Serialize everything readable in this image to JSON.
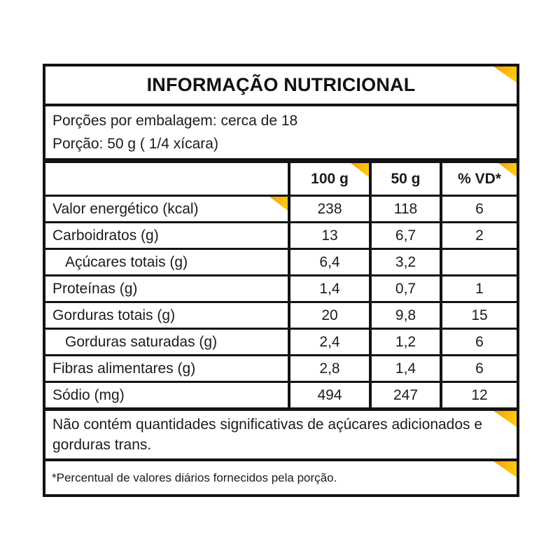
{
  "accent_color": "#FBBB10",
  "border_color": "#131313",
  "title": "INFORMAÇÃO NUTRICIONAL",
  "serving_info": {
    "servings_per_package": "Porções por embalagem: cerca de 18",
    "serving_size": "Porção: 50 g ( 1/4 xícara)"
  },
  "table": {
    "columns": [
      "100 g",
      "50 g",
      "% VD*"
    ],
    "rows": [
      {
        "label": "Valor energético (kcal)",
        "per100g": "238",
        "per50g": "118",
        "vd": "6"
      },
      {
        "label": "Carboidratos (g)",
        "per100g": "13",
        "per50g": "6,7",
        "vd": "2"
      },
      {
        "label": "Açúcares totais (g)",
        "per100g": "6,4",
        "per50g": "3,2",
        "vd": ""
      },
      {
        "label": "Proteínas (g)",
        "per100g": "1,4",
        "per50g": "0,7",
        "vd": "1"
      },
      {
        "label": "Gorduras totais (g)",
        "per100g": "20",
        "per50g": "9,8",
        "vd": "15"
      },
      {
        "label": "Gorduras saturadas (g)",
        "per100g": "2,4",
        "per50g": "1,2",
        "vd": "6"
      },
      {
        "label": "Fibras alimentares (g)",
        "per100g": "2,8",
        "per50g": "1,4",
        "vd": "6"
      },
      {
        "label": "Sódio (mg)",
        "per100g": "494",
        "per50g": "247",
        "vd": "12"
      }
    ]
  },
  "notes": {
    "no_significant_amounts": "Não contém quantidades significativas de açúcares adicionados e gorduras trans.",
    "daily_value_footnote": "*Percentual de valores diários fornecidos pela porção."
  }
}
